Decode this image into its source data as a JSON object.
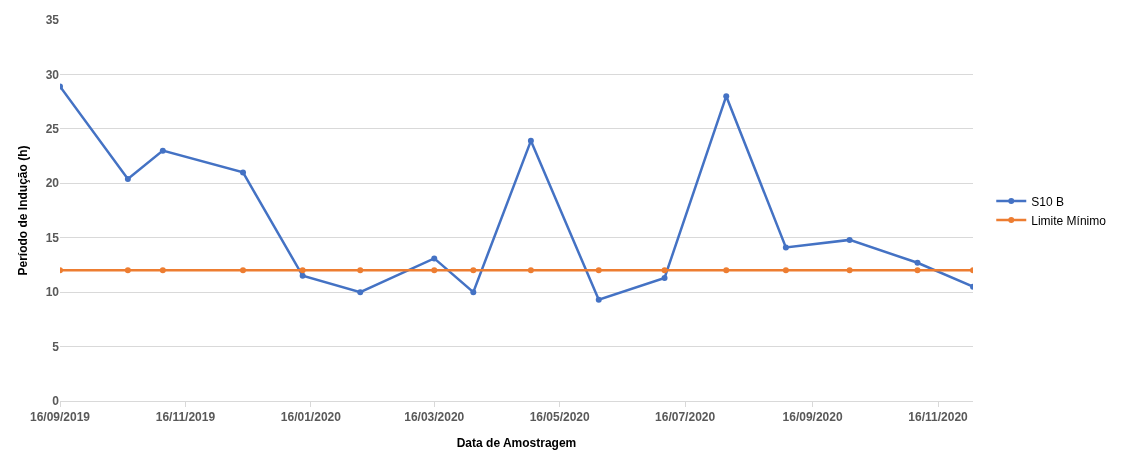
{
  "chart_data": {
    "type": "line",
    "xlabel": "Data de Amostragem",
    "ylabel": "Período de Indução (h)",
    "x": [
      "2019-09-16",
      "2019-10-19",
      "2019-11-05",
      "2019-12-14",
      "2020-01-12",
      "2020-02-09",
      "2020-03-16",
      "2020-04-04",
      "2020-05-02",
      "2020-06-04",
      "2020-07-06",
      "2020-08-05",
      "2020-09-03",
      "2020-10-04",
      "2020-11-06",
      "2020-12-03"
    ],
    "series": [
      {
        "name": "S10 B",
        "color": "#4472c4",
        "values": [
          28.9,
          20.4,
          23,
          21,
          11.5,
          10,
          13.1,
          10,
          23.9,
          9.3,
          11.3,
          28,
          14.1,
          14.8,
          12.7,
          10.5
        ]
      },
      {
        "name": "Limite Mínimo",
        "color": "#ed7d31",
        "values": [
          12,
          12,
          12,
          12,
          12,
          12,
          12,
          12,
          12,
          12,
          12,
          12,
          12,
          12,
          12,
          12
        ]
      }
    ],
    "xlim": [
      "2019-09-16",
      "2020-12-03"
    ],
    "xticks": [
      {
        "value": "2019-09-16",
        "label": "16/09/2019"
      },
      {
        "value": "2019-11-16",
        "label": "16/11/2019"
      },
      {
        "value": "2020-01-16",
        "label": "16/01/2020"
      },
      {
        "value": "2020-03-16",
        "label": "16/03/2020"
      },
      {
        "value": "2020-05-16",
        "label": "16/05/2020"
      },
      {
        "value": "2020-07-16",
        "label": "16/07/2020"
      },
      {
        "value": "2020-09-16",
        "label": "16/09/2020"
      },
      {
        "value": "2020-11-16",
        "label": "16/11/2020"
      }
    ],
    "ylim": [
      0,
      35
    ],
    "yticks": [
      0,
      5,
      10,
      15,
      20,
      25,
      30,
      35
    ],
    "grid": "y",
    "legend": "right",
    "marker": "circle",
    "line_style": "solid"
  }
}
